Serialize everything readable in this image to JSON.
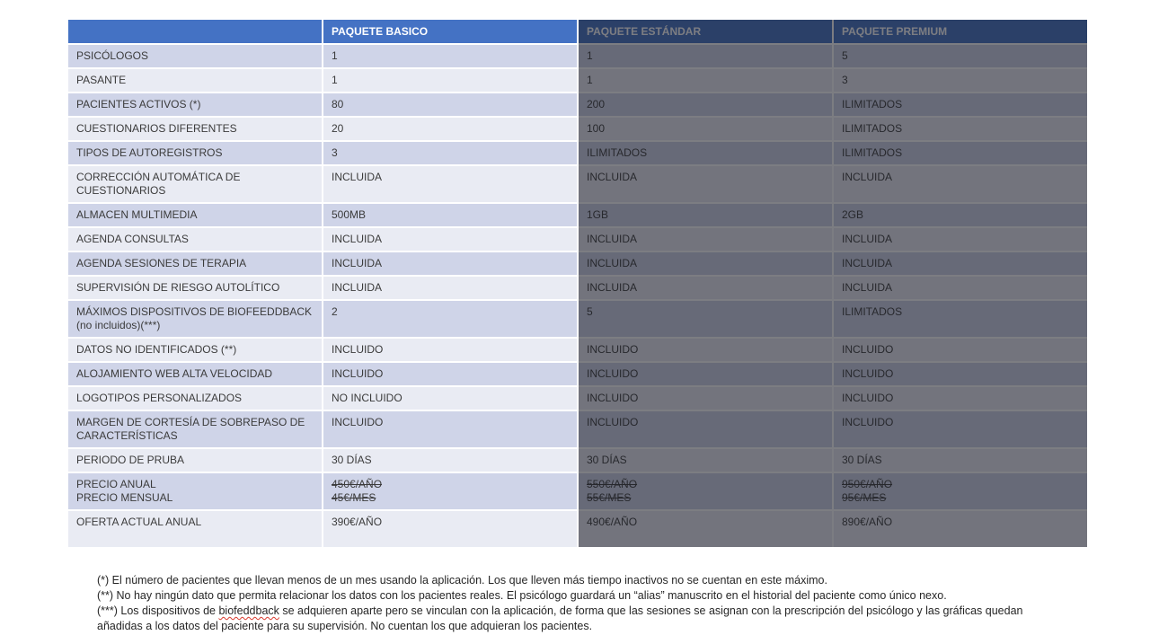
{
  "table": {
    "column_headers": [
      "",
      "PAQUETE BASICO",
      "PAQUETE ESTÁNDAR",
      "PAQUETE PREMIUM"
    ],
    "rows": [
      {
        "label": "PSICÓLOGOS",
        "cells": [
          "1",
          "1",
          "5"
        ]
      },
      {
        "label": "PASANTE",
        "cells": [
          "1",
          "1",
          "3"
        ]
      },
      {
        "label": "PACIENTES ACTIVOS (*)",
        "cells": [
          "80",
          "200",
          "ILIMITADOS"
        ]
      },
      {
        "label": "CUESTIONARIOS DIFERENTES",
        "cells": [
          "20",
          "100",
          "ILIMITADOS"
        ]
      },
      {
        "label": "TIPOS DE AUTOREGISTROS",
        "cells": [
          "3",
          "ILIMITADOS",
          "ILIMITADOS"
        ]
      },
      {
        "label": "CORRECCIÓN AUTOMÁTICA DE\nCUESTIONARIOS",
        "cells": [
          "INCLUIDA",
          "INCLUIDA",
          "INCLUIDA"
        ],
        "tall": true
      },
      {
        "label": "ALMACEN MULTIMEDIA",
        "cells": [
          "500MB",
          "1GB",
          "2GB"
        ]
      },
      {
        "label": "AGENDA CONSULTAS",
        "cells": [
          "INCLUIDA",
          "INCLUIDA",
          "INCLUIDA"
        ]
      },
      {
        "label": "AGENDA SESIONES DE TERAPIA",
        "cells": [
          "INCLUIDA",
          "INCLUIDA",
          "INCLUIDA"
        ]
      },
      {
        "label": "SUPERVISIÓN DE RIESGO AUTOLÍTICO",
        "cells": [
          "INCLUIDA",
          "INCLUIDA",
          "INCLUIDA"
        ]
      },
      {
        "label": "MÁXIMOS DISPOSITIVOS DE BIOFEEDDBACK\n(no incluidos)(***)",
        "cells": [
          "2",
          "5",
          "ILIMITADOS"
        ],
        "tall": true
      },
      {
        "label": "DATOS NO IDENTIFICADOS (**)",
        "cells": [
          "INCLUIDO",
          "INCLUIDO",
          "INCLUIDO"
        ]
      },
      {
        "label": "ALOJAMIENTO WEB ALTA VELOCIDAD",
        "cells": [
          "INCLUIDO",
          "INCLUIDO",
          "INCLUIDO"
        ]
      },
      {
        "label": "LOGOTIPOS PERSONALIZADOS",
        "cells": [
          "NO INCLUIDO",
          "INCLUIDO",
          "INCLUIDO"
        ]
      },
      {
        "label": "MARGEN DE CORTESÍA DE SOBREPASO DE\nCARACTERÍSTICAS",
        "cells": [
          "INCLUIDO",
          "INCLUIDO",
          "INCLUIDO"
        ],
        "tall": true
      },
      {
        "label": "PERIODO DE PRUBA",
        "cells": [
          "30 DÍAS",
          "30 DÍAS",
          "30 DÍAS"
        ]
      },
      {
        "label": "PRECIO ANUAL\nPRECIO MENSUAL",
        "cells": [
          "450€/AÑO\n45€/MES",
          "550€/AÑO\n55€/MES",
          "950€/AÑO\n95€/MES"
        ],
        "tall": true,
        "strike": true
      },
      {
        "label": "OFERTA ACTUAL ANUAL",
        "cells": [
          "390€/AÑO",
          "490€/AÑO",
          "890€/AÑO"
        ],
        "tall": true
      }
    ]
  },
  "notes": [
    {
      "text": "(*) El número de pacientes que llevan menos de un mes usando la aplicación. Los que lleven más tiempo inactivos no se cuentan en este máximo."
    },
    {
      "text": "(**) No hay ningún dato que permita relacionar los datos con los pacientes reales. El psicólogo guardará un “alias” manuscrito en el historial del paciente como único nexo."
    },
    {
      "prefix": "(***) Los dispositivos de ",
      "misspelled": "biofeddback",
      "suffix": " se adquieren aparte pero se vinculan con la aplicación, de forma que las sesiones se asignan con la prescripción del psicólogo y las gráficas quedan añadidas a los datos del paciente para su supervisión. No cuentan los que adquieran los pacientes."
    }
  ],
  "colors": {
    "header_blue": "#4472C4",
    "header_text": "#FFFFFF",
    "row_dark": "#CFD4E8",
    "row_light": "#E9EBF3",
    "cell_text": "#3B3B3B",
    "overlay": "rgba(24,27,36,0.57)",
    "note_text": "#262626",
    "spellcheck_red": "#D83A2E"
  }
}
